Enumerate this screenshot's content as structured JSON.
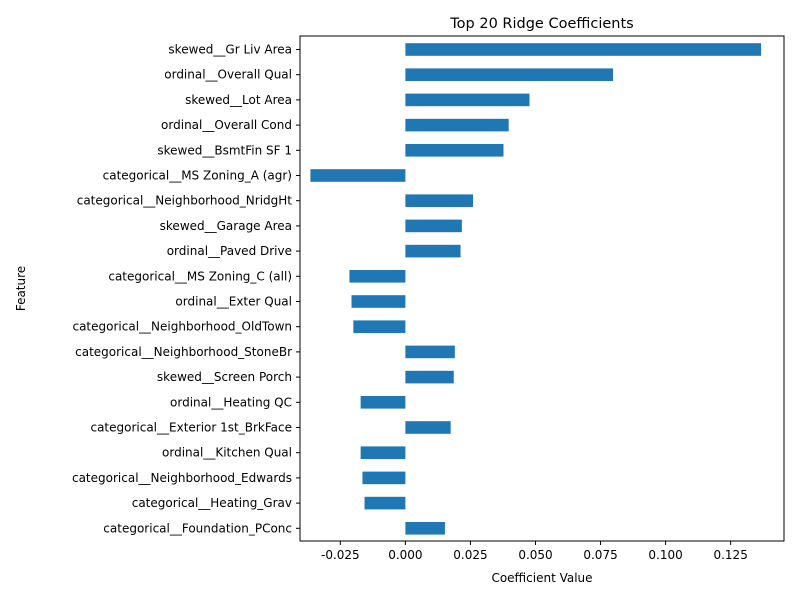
{
  "chart_data": {
    "type": "bar",
    "orientation": "horizontal",
    "title": "Top 20 Ridge Coefficients",
    "xlabel": "Coefficient Value",
    "ylabel": "Feature",
    "xlim": [
      -0.0405,
      0.1455
    ],
    "xticks": [
      "-0.025",
      "0.000",
      "0.025",
      "0.050",
      "0.075",
      "0.100",
      "0.125"
    ],
    "xtick_values": [
      -0.025,
      0.0,
      0.025,
      0.05,
      0.075,
      0.1,
      0.125
    ],
    "grid": false,
    "categories": [
      "skewed__Gr Liv Area",
      "ordinal__Overall Qual",
      "skewed__Lot Area",
      "ordinal__Overall Cond",
      "skewed__BsmtFin SF 1",
      "categorical__MS Zoning_A (agr)",
      "categorical__Neighborhood_NridgHt",
      "skewed__Garage Area",
      "ordinal__Paved Drive",
      "categorical__MS Zoning_C (all)",
      "ordinal__Exter Qual",
      "categorical__Neighborhood_OldTown",
      "categorical__Neighborhood_StoneBr",
      "skewed__Screen Porch",
      "ordinal__Heating QC",
      "categorical__Exterior 1st_BrkFace",
      "ordinal__Kitchen Qual",
      "categorical__Neighborhood_Edwards",
      "categorical__Heating_Grav",
      "categorical__Foundation_PConc"
    ],
    "values": [
      0.1367,
      0.0798,
      0.0477,
      0.0397,
      0.0377,
      -0.0365,
      0.026,
      0.0217,
      0.0212,
      -0.0215,
      -0.0207,
      -0.02,
      0.019,
      0.0186,
      -0.0172,
      0.0174,
      -0.0172,
      -0.0165,
      -0.0157,
      0.0152
    ],
    "bar_color": "#1f77b4"
  }
}
